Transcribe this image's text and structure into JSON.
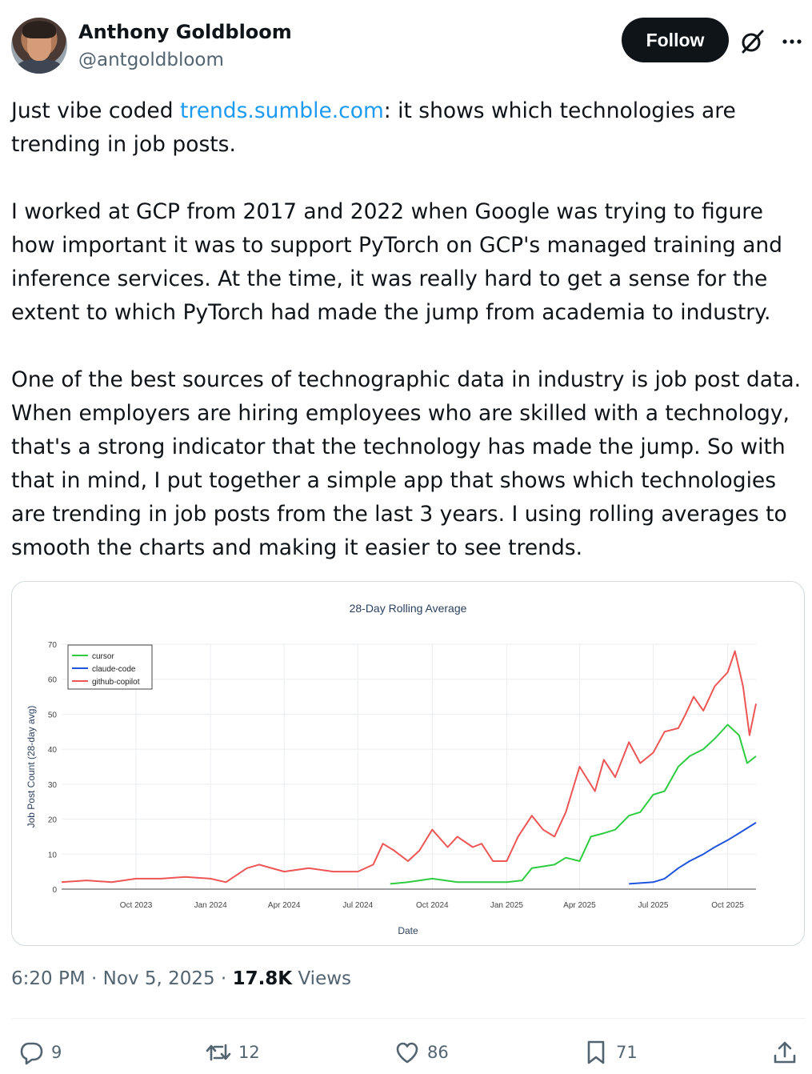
{
  "author": {
    "name": "Anthony Goldbloom",
    "handle": "@antgoldbloom"
  },
  "header": {
    "follow_label": "Follow",
    "icons": [
      "grok-icon",
      "more-icon"
    ]
  },
  "post": {
    "p1_before": "Just vibe coded ",
    "p1_link": "trends.sumble.com",
    "p1_after": ": it shows which technologies are trending in job posts.",
    "p2": "I worked at GCP from 2017 and 2022 when Google was trying to figure how important it was to support PyTorch on GCP's managed training and inference services. At the time, it was really hard to get a sense for the extent to which PyTorch had made the jump from academia to industry.",
    "p3": "One of the best sources of technographic data in industry is job post data. When employers are hiring employees who are skilled with a technology, that's a strong indicator that the technology has made the jump. So with that in mind, I put together a simple app that shows which technologies are trending in job posts from the last 3 years. I using rolling averages to smooth the charts and making it easier to see trends."
  },
  "chart_data": {
    "type": "line",
    "title": "28-Day Rolling Average",
    "xlabel": "Date",
    "ylabel": "Job Post Count (28-day avg)",
    "ylim": [
      0,
      70
    ],
    "yticks": [
      0,
      10,
      20,
      30,
      40,
      50,
      60,
      70
    ],
    "xticks": [
      "Oct 2023",
      "Jan 2024",
      "Apr 2024",
      "Jul 2024",
      "Oct 2024",
      "Jan 2025",
      "Apr 2025",
      "Jul 2025",
      "Oct 2025"
    ],
    "legend_position": "top-left",
    "grid": true,
    "series": [
      {
        "name": "cursor",
        "color": "#2ecc40",
        "x": [
          "2024-08-10",
          "2024-09-01",
          "2024-10-01",
          "2024-11-01",
          "2024-12-01",
          "2025-01-01",
          "2025-01-20",
          "2025-02-01",
          "2025-02-15",
          "2025-03-01",
          "2025-03-15",
          "2025-04-01",
          "2025-04-15",
          "2025-05-01",
          "2025-05-15",
          "2025-06-01",
          "2025-06-15",
          "2025-07-01",
          "2025-07-15",
          "2025-08-01",
          "2025-08-15",
          "2025-09-01",
          "2025-09-15",
          "2025-10-01",
          "2025-10-15",
          "2025-10-25",
          "2025-11-05"
        ],
        "values": [
          1.5,
          2,
          3,
          2,
          2,
          2,
          2.5,
          6,
          6.5,
          7,
          9,
          8,
          15,
          16,
          17,
          21,
          22,
          27,
          28,
          35,
          38,
          40,
          43,
          47,
          44,
          36,
          38
        ]
      },
      {
        "name": "claude-code",
        "color": "#2255dd",
        "x": [
          "2025-06-01",
          "2025-07-01",
          "2025-07-15",
          "2025-08-01",
          "2025-08-15",
          "2025-09-01",
          "2025-09-15",
          "2025-10-01",
          "2025-10-15",
          "2025-11-05"
        ],
        "values": [
          1.5,
          2,
          3,
          6,
          8,
          10,
          12,
          14,
          16,
          19
        ]
      },
      {
        "name": "github-copilot",
        "color": "#ee5555",
        "x": [
          "2023-07-01",
          "2023-08-01",
          "2023-09-01",
          "2023-10-01",
          "2023-11-01",
          "2023-12-01",
          "2024-01-01",
          "2024-01-20",
          "2024-02-15",
          "2024-03-01",
          "2024-04-01",
          "2024-05-01",
          "2024-06-01",
          "2024-07-01",
          "2024-07-20",
          "2024-08-01",
          "2024-08-15",
          "2024-09-01",
          "2024-09-15",
          "2024-10-01",
          "2024-10-20",
          "2024-11-01",
          "2024-11-20",
          "2024-12-01",
          "2024-12-15",
          "2025-01-01",
          "2025-01-15",
          "2025-02-01",
          "2025-02-15",
          "2025-03-01",
          "2025-03-15",
          "2025-04-01",
          "2025-04-20",
          "2025-05-01",
          "2025-05-15",
          "2025-06-01",
          "2025-06-15",
          "2025-07-01",
          "2025-07-15",
          "2025-08-01",
          "2025-08-10",
          "2025-08-20",
          "2025-09-01",
          "2025-09-15",
          "2025-10-01",
          "2025-10-10",
          "2025-10-20",
          "2025-10-28",
          "2025-11-05"
        ],
        "values": [
          2,
          2.5,
          2,
          3,
          3,
          3.5,
          3,
          2,
          6,
          7,
          5,
          6,
          5,
          5,
          7,
          13,
          11,
          8,
          11,
          17,
          12,
          15,
          12,
          13,
          8,
          8,
          15,
          21,
          17,
          15,
          22,
          35,
          28,
          37,
          32,
          42,
          36,
          39,
          45,
          46,
          50,
          55,
          51,
          58,
          62,
          68,
          58,
          44,
          53
        ]
      }
    ]
  },
  "meta": {
    "time": "6:20 PM",
    "sep1": " · ",
    "date": "Nov 5, 2025",
    "sep2": " · ",
    "views_count": "17.8K",
    "views_label": " Views"
  },
  "actions": {
    "replies": "9",
    "reposts": "12",
    "likes": "86",
    "bookmarks": "71"
  }
}
